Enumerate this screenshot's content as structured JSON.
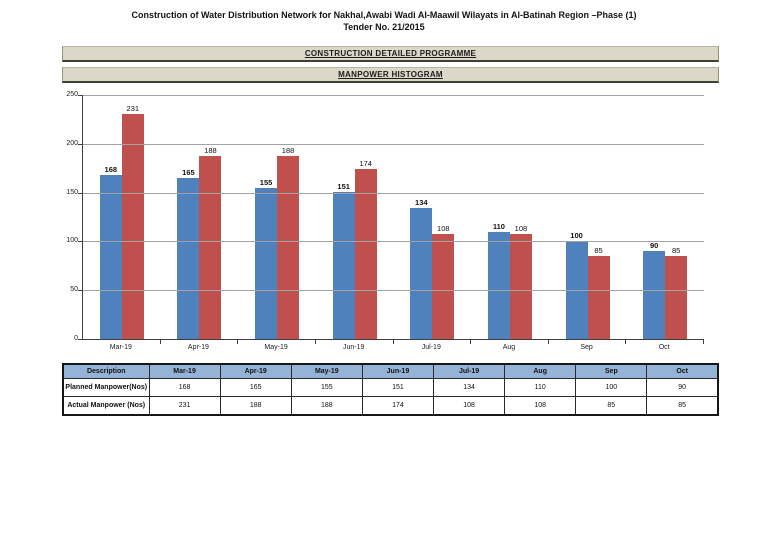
{
  "page": {
    "title_line1": "Construction of Water Distribution Network for Nakhal,Awabi Wadi  Al-Maawil Wilayats in Al-Batinah Region –Phase (1)",
    "title_line2": "Tender No. 21/2015"
  },
  "banners": {
    "programme": "CONSTRUCTION DETAILED PROGRAMME",
    "histogram": "MANPOWER HISTOGRAM"
  },
  "chart_data": {
    "type": "bar",
    "title": "MANPOWER HISTOGRAM",
    "categories": [
      "Mar-19",
      "Apr-19",
      "May-19",
      "Jun-19",
      "Jul-19",
      "Aug",
      "Sep",
      "Oct"
    ],
    "series": [
      {
        "name": "Planned Manpower(Nos)",
        "color": "#4f81bd",
        "values": [
          168,
          165,
          155,
          151,
          134,
          110,
          100,
          90
        ]
      },
      {
        "name": "Actual Manpower (Nos)",
        "color": "#c0504d",
        "values": [
          231,
          188,
          188,
          174,
          108,
          108,
          85,
          85
        ]
      }
    ],
    "xlabel": "",
    "ylabel": "",
    "ylim": [
      0,
      250
    ],
    "ytick_interval": 50,
    "grid": true,
    "legend_position": "none",
    "data_labels": true
  },
  "table": {
    "headers": [
      "Description",
      "Mar-19",
      "Apr-19",
      "May-19",
      "Jun-19",
      "Jul-19",
      "Aug",
      "Sep",
      "Oct"
    ],
    "rows": [
      {
        "label": "Planned Manpower(Nos)",
        "values": [
          168,
          165,
          155,
          151,
          134,
          110,
          100,
          90
        ]
      },
      {
        "label": "Actual Manpower (Nos)",
        "values": [
          231,
          188,
          188,
          174,
          108,
          108,
          85,
          85
        ]
      }
    ]
  },
  "colors": {
    "planned_bar": "#4f81bd",
    "actual_bar": "#c0504d",
    "banner_bg": "#dbd8c7",
    "table_header_bg": "#95b3d7",
    "gridline": "#a3a3a3"
  }
}
